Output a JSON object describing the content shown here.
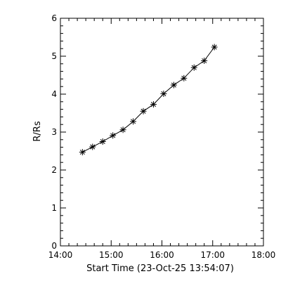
{
  "chart_data": {
    "type": "line",
    "title": "",
    "xlabel": "Start Time (23-Oct-25 13:54:07)",
    "ylabel": "R/Rs",
    "x_tick_labels": [
      "14:00",
      "15:00",
      "16:00",
      "17:00",
      "18:00"
    ],
    "y_tick_labels": [
      "0",
      "1",
      "2",
      "3",
      "4",
      "5",
      "6"
    ],
    "xlim_minutes": [
      0,
      240
    ],
    "ylim": [
      0,
      6
    ],
    "grid": false,
    "marker": "asterisk",
    "series": [
      {
        "x_minutes": [
          26,
          38,
          50,
          62,
          74,
          86,
          98,
          110,
          122,
          134,
          146,
          158,
          170,
          182
        ],
        "values": [
          2.47,
          2.61,
          2.75,
          2.91,
          3.06,
          3.28,
          3.55,
          3.73,
          4.01,
          4.24,
          4.42,
          4.7,
          4.88,
          5.24
        ]
      }
    ]
  }
}
